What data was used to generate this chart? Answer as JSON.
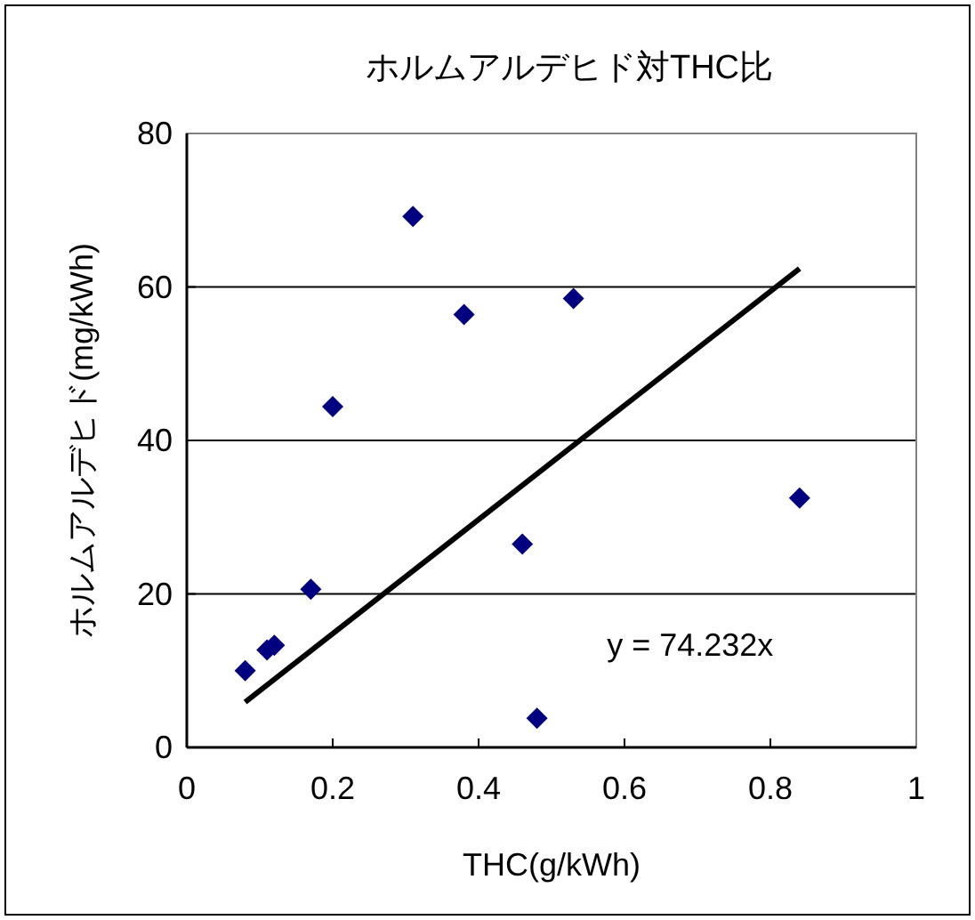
{
  "chart_data": {
    "type": "scatter",
    "title": "ホルムアルデヒド対THC比",
    "xlabel": "THC(g/kWh)",
    "ylabel": "ホルムアルデヒド(mg/kWh)",
    "xlim": [
      0,
      1
    ],
    "xticks": [
      0,
      0.2,
      0.4,
      0.6,
      0.8,
      1
    ],
    "ylim": [
      0,
      80
    ],
    "yticks": [
      0,
      20,
      40,
      60,
      80
    ],
    "grid": "y",
    "marker": "diamond",
    "series": [
      {
        "color": "#000080",
        "x": [
          0.08,
          0.11,
          0.12,
          0.17,
          0.2,
          0.31,
          0.38,
          0.46,
          0.48,
          0.53,
          0.84
        ],
        "values": [
          10,
          12.7,
          13.3,
          20.6,
          44.4,
          69.2,
          56.4,
          26.5,
          3.8,
          58.5,
          32.5
        ]
      },
      {
        "type": "line",
        "color": "#000000",
        "marker": "none",
        "x": [
          0.08,
          0.84
        ],
        "values": [
          5.9,
          62.4
        ]
      }
    ],
    "annotations": [
      "y = 74.232x"
    ]
  }
}
